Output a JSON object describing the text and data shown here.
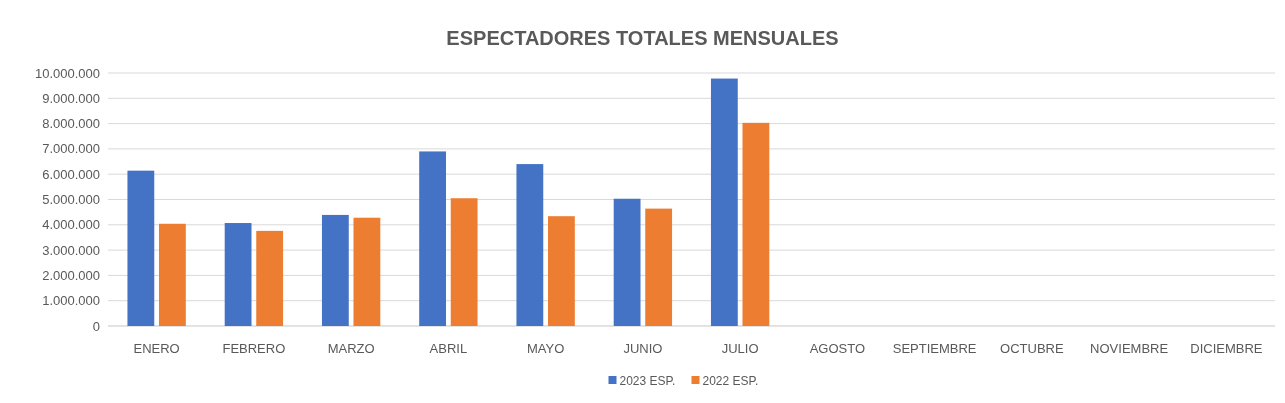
{
  "chart_data": {
    "type": "bar",
    "title": "ESPECTADORES TOTALES MENSUALES",
    "categories": [
      "ENERO",
      "FEBRERO",
      "MARZO",
      "ABRIL",
      "MAYO",
      "JUNIO",
      "JULIO",
      "AGOSTO",
      "SEPTIEMBRE",
      "OCTUBRE",
      "NOVIEMBRE",
      "DICIEMBRE"
    ],
    "series": [
      {
        "name": "2023 ESP.",
        "color": "#4472c4",
        "values": [
          6140000,
          4070000,
          4390000,
          6900000,
          6400000,
          5030000,
          9780000,
          null,
          null,
          null,
          null,
          null
        ]
      },
      {
        "name": "2022 ESP.",
        "color": "#ed7d31",
        "values": [
          4040000,
          3760000,
          4280000,
          5050000,
          4340000,
          4640000,
          8030000,
          null,
          null,
          null,
          null,
          null
        ]
      }
    ],
    "ylim": [
      0,
      10000000
    ],
    "yticks": [
      {
        "value": 0,
        "label": "0"
      },
      {
        "value": 1000000,
        "label": "1.000.000"
      },
      {
        "value": 2000000,
        "label": "2.000.000"
      },
      {
        "value": 3000000,
        "label": "3.000.000"
      },
      {
        "value": 4000000,
        "label": "4.000.000"
      },
      {
        "value": 5000000,
        "label": "5.000.000"
      },
      {
        "value": 6000000,
        "label": "6.000.000"
      },
      {
        "value": 7000000,
        "label": "7.000.000"
      },
      {
        "value": 8000000,
        "label": "8.000.000"
      },
      {
        "value": 9000000,
        "label": "9.000.000"
      },
      {
        "value": 10000000,
        "label": "10.000.000"
      }
    ],
    "grid": "y",
    "legend": "bottom"
  }
}
